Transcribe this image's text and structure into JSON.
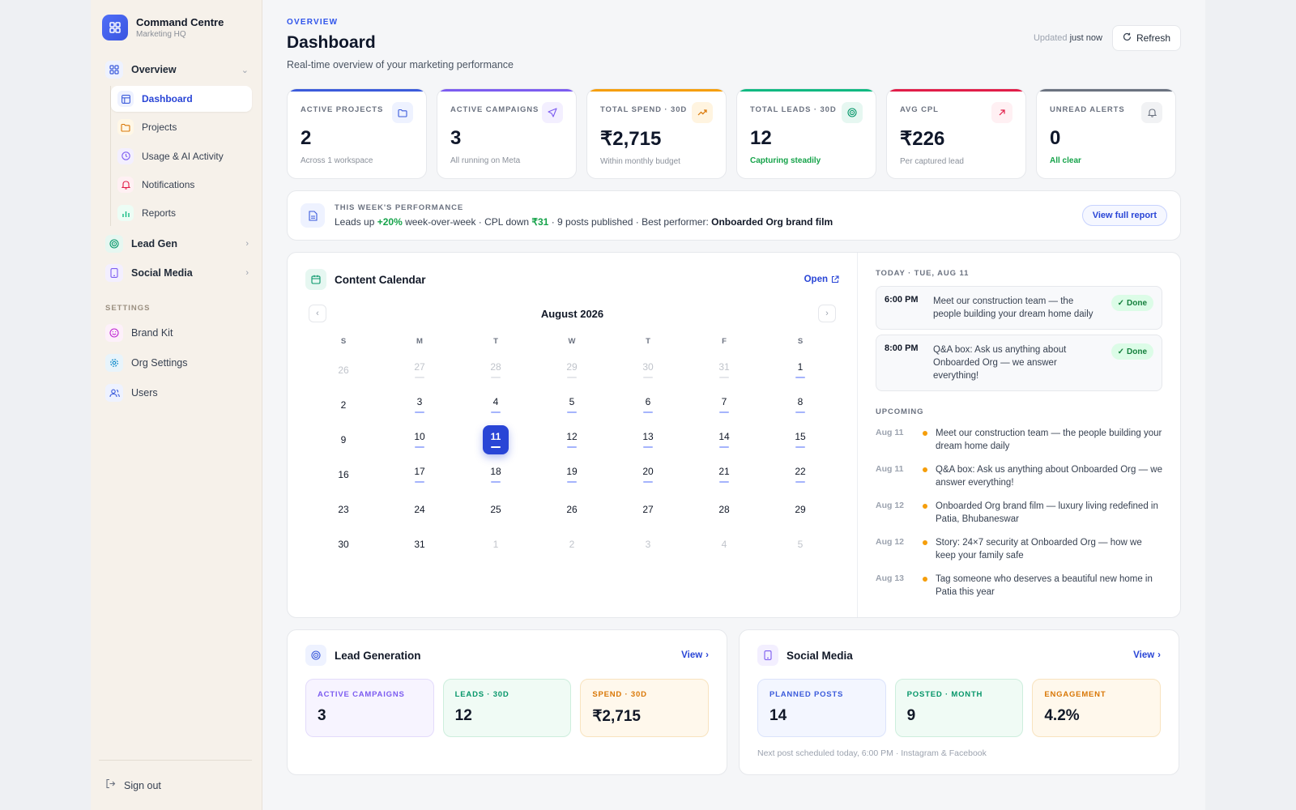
{
  "brand": {
    "title": "Command Centre",
    "subtitle": "Marketing HQ"
  },
  "sidebar": {
    "overview_label": "Overview",
    "sub_items": [
      {
        "label": "Dashboard",
        "icon": "layout-icon"
      },
      {
        "label": "Projects",
        "icon": "folder-icon"
      },
      {
        "label": "Usage & AI Activity",
        "icon": "clock-icon"
      },
      {
        "label": "Notifications",
        "icon": "bell-icon"
      },
      {
        "label": "Reports",
        "icon": "bar-chart-icon"
      }
    ],
    "lead_gen_label": "Lead Gen",
    "social_media_label": "Social Media",
    "settings_section": "SETTINGS",
    "settings_items": [
      {
        "label": "Brand Kit",
        "icon": "smile-icon"
      },
      {
        "label": "Org Settings",
        "icon": "gear-icon"
      },
      {
        "label": "Users",
        "icon": "users-icon"
      }
    ],
    "sign_out": "Sign out"
  },
  "header": {
    "eyebrow": "OVERVIEW",
    "title": "Dashboard",
    "subtitle": "Real-time overview of your marketing performance",
    "updated_prefix": "Updated",
    "updated_value": "just now",
    "refresh_label": "Refresh"
  },
  "kpis": [
    {
      "label": "ACTIVE PROJECTS",
      "value": "2",
      "sub": "Across 1 workspace",
      "color": "#3b5bdb"
    },
    {
      "label": "ACTIVE CAMPAIGNS",
      "value": "3",
      "sub": "All running on Meta",
      "color": "#7c5cf0"
    },
    {
      "label": "TOTAL SPEND · 30D",
      "value": "₹2,715",
      "sub": "Within monthly budget",
      "color": "#f59e0b"
    },
    {
      "label": "TOTAL LEADS · 30D",
      "value": "12",
      "sub": "Capturing steadily",
      "color": "#10b981"
    },
    {
      "label": "AVG CPL",
      "value": "₹226",
      "sub": "Per captured lead",
      "color": "#e11d48"
    },
    {
      "label": "UNREAD ALERTS",
      "value": "0",
      "sub": "All clear",
      "color": "#6b7280"
    }
  ],
  "performance": {
    "heading": "THIS WEEK'S PERFORMANCE",
    "p1": "Leads up ",
    "leads_change": "+20%",
    "p2": " week-over-week · CPL down ",
    "cpl_change": "₹31",
    "p3": " · 9 posts published · Best performer: ",
    "best": "Onboarded Org brand film",
    "button": "View full report"
  },
  "calendar": {
    "title": "Content Calendar",
    "open_label": "Open",
    "month": "August 2026",
    "dow": [
      "S",
      "M",
      "T",
      "W",
      "T",
      "F",
      "S"
    ],
    "days": [
      {
        "d": "26",
        "m": true,
        "dot": false
      },
      {
        "d": "27",
        "m": true,
        "dot": true
      },
      {
        "d": "28",
        "m": true,
        "dot": true
      },
      {
        "d": "29",
        "m": true,
        "dot": true
      },
      {
        "d": "30",
        "m": true,
        "dot": true
      },
      {
        "d": "31",
        "m": true,
        "dot": true
      },
      {
        "d": "1",
        "m": false,
        "dot": true
      },
      {
        "d": "2",
        "m": false,
        "dot": false
      },
      {
        "d": "3",
        "m": false,
        "dot": true
      },
      {
        "d": "4",
        "m": false,
        "dot": true
      },
      {
        "d": "5",
        "m": false,
        "dot": true
      },
      {
        "d": "6",
        "m": false,
        "dot": true
      },
      {
        "d": "7",
        "m": false,
        "dot": true
      },
      {
        "d": "8",
        "m": false,
        "dot": true
      },
      {
        "d": "9",
        "m": false,
        "dot": false
      },
      {
        "d": "10",
        "m": false,
        "dot": true
      },
      {
        "d": "11",
        "m": false,
        "dot": true,
        "today": true
      },
      {
        "d": "12",
        "m": false,
        "dot": true
      },
      {
        "d": "13",
        "m": false,
        "dot": true
      },
      {
        "d": "14",
        "m": false,
        "dot": true
      },
      {
        "d": "15",
        "m": false,
        "dot": true
      },
      {
        "d": "16",
        "m": false,
        "dot": false
      },
      {
        "d": "17",
        "m": false,
        "dot": true
      },
      {
        "d": "18",
        "m": false,
        "dot": true
      },
      {
        "d": "19",
        "m": false,
        "dot": true
      },
      {
        "d": "20",
        "m": false,
        "dot": true
      },
      {
        "d": "21",
        "m": false,
        "dot": true
      },
      {
        "d": "22",
        "m": false,
        "dot": true
      },
      {
        "d": "23",
        "m": false,
        "dot": false
      },
      {
        "d": "24",
        "m": false,
        "dot": false
      },
      {
        "d": "25",
        "m": false,
        "dot": false
      },
      {
        "d": "26",
        "m": false,
        "dot": false
      },
      {
        "d": "27",
        "m": false,
        "dot": false
      },
      {
        "d": "28",
        "m": false,
        "dot": false
      },
      {
        "d": "29",
        "m": false,
        "dot": false
      },
      {
        "d": "30",
        "m": false,
        "dot": false
      },
      {
        "d": "31",
        "m": false,
        "dot": false
      },
      {
        "d": "1",
        "m": true,
        "dot": false
      },
      {
        "d": "2",
        "m": true,
        "dot": false
      },
      {
        "d": "3",
        "m": true,
        "dot": false
      },
      {
        "d": "4",
        "m": true,
        "dot": false
      },
      {
        "d": "5",
        "m": true,
        "dot": false
      }
    ],
    "today_heading": "TODAY · TUE, AUG 11",
    "today_items": [
      {
        "time": "6:00 PM",
        "text": "Meet our construction team — the people building your dream home daily",
        "status": "Done"
      },
      {
        "time": "8:00 PM",
        "text": "Q&A box: Ask us anything about Onboarded Org — we answer everything!",
        "status": "Done"
      }
    ],
    "upcoming_heading": "UPCOMING",
    "upcoming": [
      {
        "date": "Aug 11",
        "text": "Meet our construction team — the people building your dream home daily"
      },
      {
        "date": "Aug 11",
        "text": "Q&A box: Ask us anything about Onboarded Org — we answer everything!"
      },
      {
        "date": "Aug 12",
        "text": "Onboarded Org brand film — luxury living redefined in Patia, Bhubaneswar"
      },
      {
        "date": "Aug 12",
        "text": "Story: 24×7 security at Onboarded Org — how we keep your family safe"
      },
      {
        "date": "Aug 13",
        "text": "Tag someone who deserves a beautiful new home in Patia this year"
      }
    ]
  },
  "lead_gen": {
    "title": "Lead Generation",
    "view": "View",
    "tiles": [
      {
        "label": "ACTIVE CAMPAIGNS",
        "value": "3"
      },
      {
        "label": "LEADS · 30D",
        "value": "12"
      },
      {
        "label": "SPEND · 30D",
        "value": "₹2,715"
      }
    ]
  },
  "social": {
    "title": "Social Media",
    "view": "View",
    "tiles": [
      {
        "label": "PLANNED POSTS",
        "value": "14"
      },
      {
        "label": "POSTED · MONTH",
        "value": "9"
      },
      {
        "label": "ENGAGEMENT",
        "value": "4.2%"
      }
    ],
    "footnote": "Next post scheduled today, 6:00 PM · Instagram & Facebook"
  }
}
